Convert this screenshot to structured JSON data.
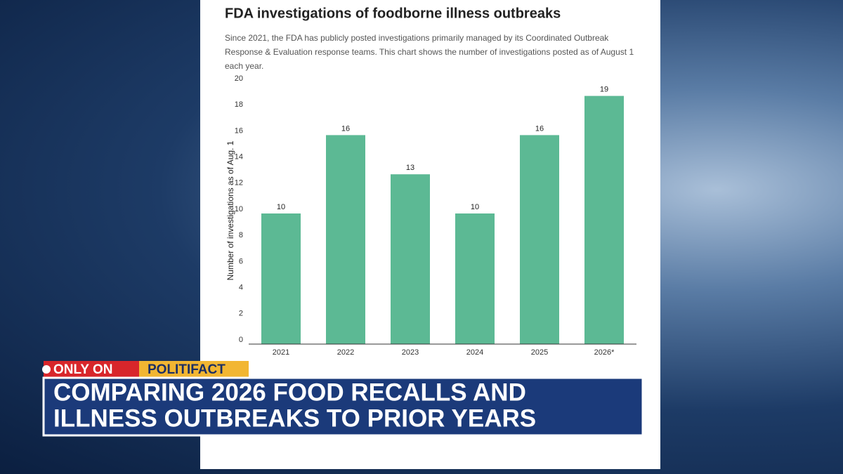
{
  "chart_data": {
    "type": "bar",
    "title": "FDA investigations of foodborne illness outbreaks",
    "subtitle": "Since 2021, the FDA has publicly posted investigations primarily managed by its Coordinated Outbreak Response & Evaluation response teams. This chart shows the number of investigations posted as of August 1 each year.",
    "y_label": "Number of investigations as of Aug. 1",
    "categories": [
      "2021",
      "2022",
      "2023",
      "2024",
      "2025",
      "2026*"
    ],
    "values": [
      10,
      16,
      13,
      10,
      16,
      19
    ],
    "color": "#5cb994",
    "ylim": [
      0,
      20
    ],
    "yticks": [
      0,
      2,
      4,
      6,
      8,
      10,
      12,
      14,
      16,
      18,
      20
    ],
    "grid": false
  },
  "banner": {
    "tag": "ONLY ON",
    "brand": "POLITIFACT",
    "headline": [
      "COMPARING 2026 FOOD RECALLS AND",
      "ILLNESS OUTBREAKS TO PRIOR YEARS"
    ]
  }
}
